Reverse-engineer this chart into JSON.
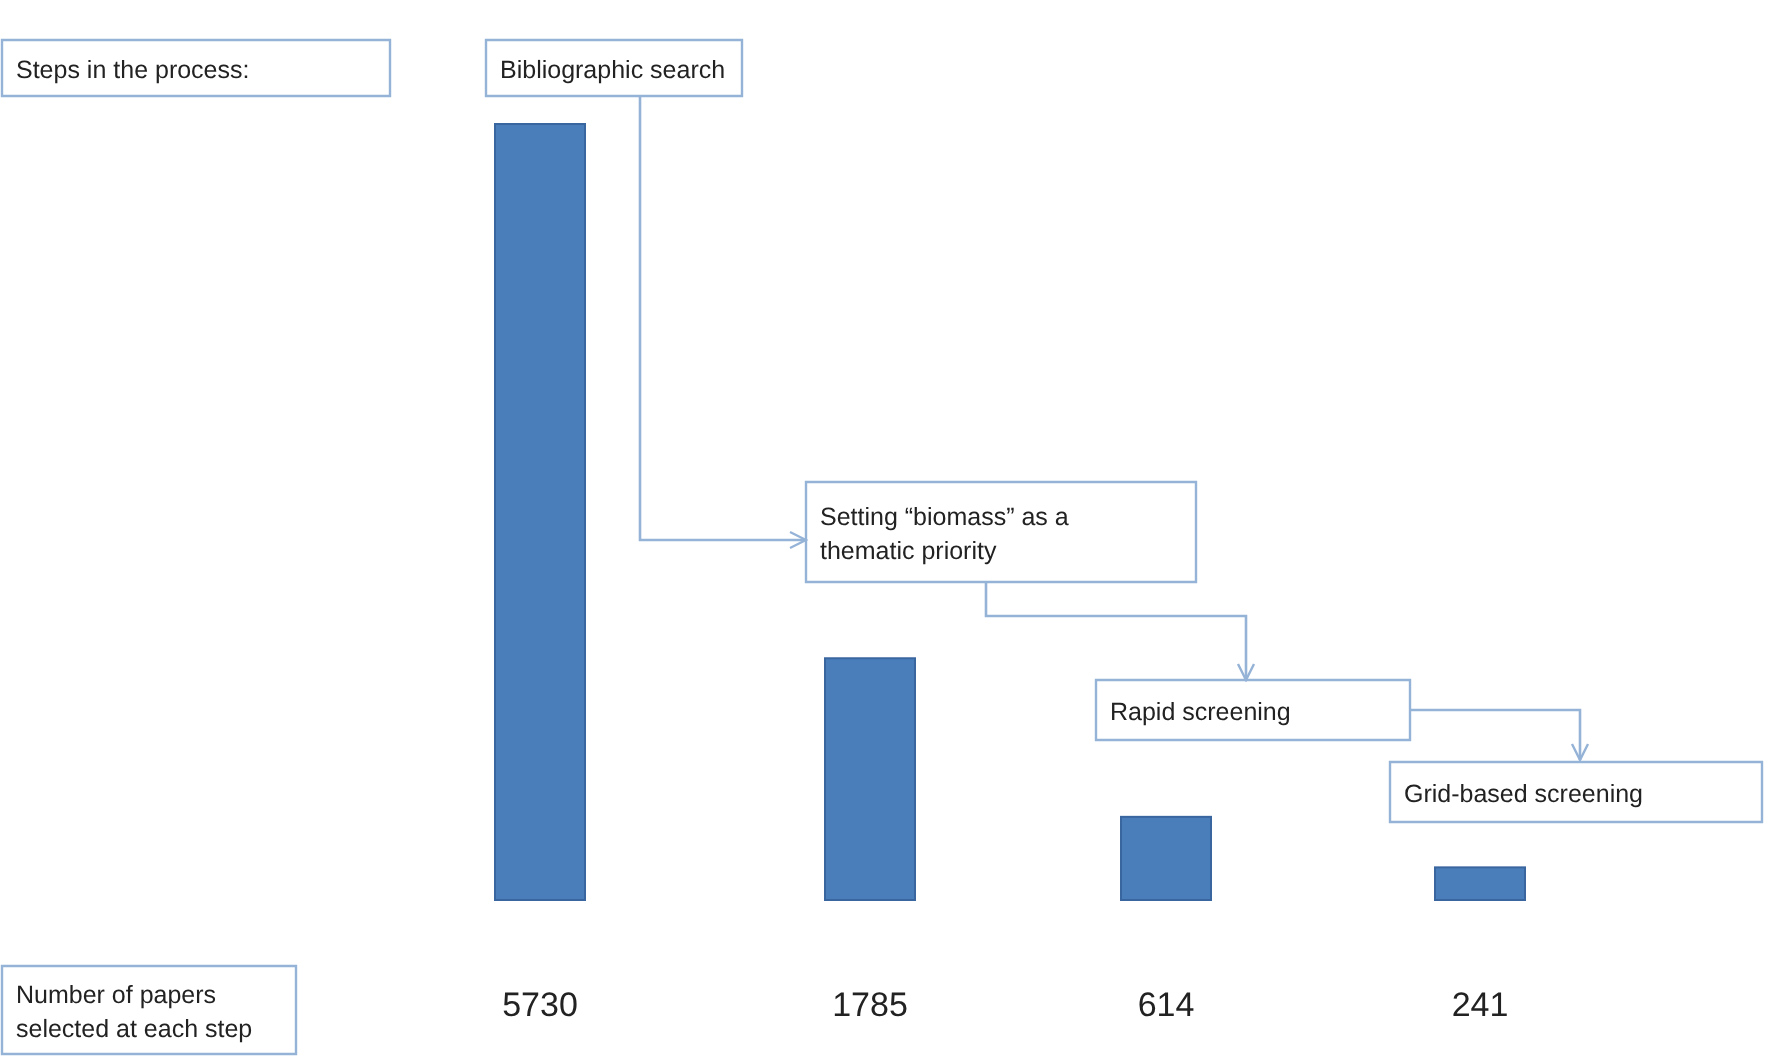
{
  "chart_data": {
    "type": "bar",
    "categories": [
      "Bibliographic search",
      "Setting “biomass” as a thematic priority",
      "Rapid screening",
      "Grid-based screening"
    ],
    "values": [
      5730,
      1785,
      614,
      241
    ],
    "color": "#4a7ebb",
    "data_labels": true,
    "annotations": [
      "Steps in the process:",
      "Number of papers selected at each step"
    ]
  }
}
